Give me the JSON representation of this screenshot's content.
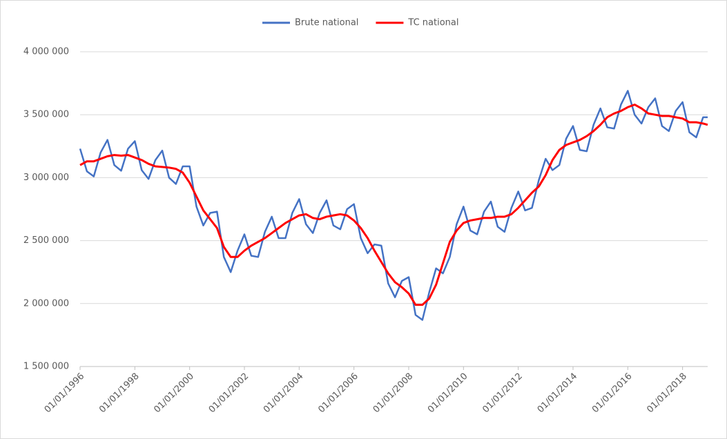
{
  "chart_data": {
    "type": "line",
    "x": [
      "01/01/1996",
      "01/04/1996",
      "01/07/1996",
      "01/10/1996",
      "01/01/1997",
      "01/04/1997",
      "01/07/1997",
      "01/10/1997",
      "01/01/1998",
      "01/04/1998",
      "01/07/1998",
      "01/10/1998",
      "01/01/1999",
      "01/04/1999",
      "01/07/1999",
      "01/10/1999",
      "01/01/2000",
      "01/04/2000",
      "01/07/2000",
      "01/10/2000",
      "01/01/2001",
      "01/04/2001",
      "01/07/2001",
      "01/10/2001",
      "01/01/2002",
      "01/04/2002",
      "01/07/2002",
      "01/10/2002",
      "01/01/2003",
      "01/04/2003",
      "01/07/2003",
      "01/10/2003",
      "01/01/2004",
      "01/04/2004",
      "01/07/2004",
      "01/10/2004",
      "01/01/2005",
      "01/04/2005",
      "01/07/2005",
      "01/10/2005",
      "01/01/2006",
      "01/04/2006",
      "01/07/2006",
      "01/10/2006",
      "01/01/2007",
      "01/04/2007",
      "01/07/2007",
      "01/10/2007",
      "01/01/2008",
      "01/04/2008",
      "01/07/2008",
      "01/10/2008",
      "01/01/2009",
      "01/04/2009",
      "01/07/2009",
      "01/10/2009",
      "01/01/2010",
      "01/04/2010",
      "01/07/2010",
      "01/10/2010",
      "01/01/2011",
      "01/04/2011",
      "01/07/2011",
      "01/10/2011",
      "01/01/2012",
      "01/04/2012",
      "01/07/2012",
      "01/10/2012",
      "01/01/2013",
      "01/04/2013",
      "01/07/2013",
      "01/10/2013",
      "01/01/2014",
      "01/04/2014",
      "01/07/2014",
      "01/10/2014",
      "01/01/2015",
      "01/04/2015",
      "01/07/2015",
      "01/10/2015",
      "01/01/2016",
      "01/04/2016",
      "01/07/2016",
      "01/10/2016",
      "01/01/2017",
      "01/04/2017",
      "01/07/2017",
      "01/10/2017",
      "01/01/2018",
      "01/04/2018",
      "01/07/2018",
      "01/10/2018",
      "01/12/2018"
    ],
    "series": [
      {
        "name": "Brute national",
        "color": "#4472c4",
        "values": [
          3230000,
          3050000,
          3010000,
          3200000,
          3300000,
          3100000,
          3055000,
          3230000,
          3290000,
          3060000,
          2990000,
          3140000,
          3215000,
          3000000,
          2950000,
          3090000,
          3090000,
          2770000,
          2620000,
          2720000,
          2730000,
          2370000,
          2250000,
          2420000,
          2550000,
          2380000,
          2370000,
          2570000,
          2690000,
          2520000,
          2520000,
          2720000,
          2830000,
          2630000,
          2560000,
          2720000,
          2820000,
          2620000,
          2590000,
          2750000,
          2790000,
          2520000,
          2400000,
          2470000,
          2460000,
          2160000,
          2050000,
          2180000,
          2210000,
          1910000,
          1870000,
          2090000,
          2280000,
          2240000,
          2370000,
          2630000,
          2770000,
          2580000,
          2550000,
          2730000,
          2810000,
          2610000,
          2570000,
          2760000,
          2890000,
          2740000,
          2760000,
          2980000,
          3150000,
          3060000,
          3100000,
          3310000,
          3410000,
          3220000,
          3210000,
          3420000,
          3550000,
          3400000,
          3390000,
          3580000,
          3690000,
          3500000,
          3430000,
          3560000,
          3630000,
          3410000,
          3370000,
          3530000,
          3600000,
          3360000,
          3320000,
          3480000,
          3480000
        ]
      },
      {
        "name": "TC national",
        "color": "#ff0000",
        "values": [
          3100000,
          3130000,
          3130000,
          3150000,
          3170000,
          3180000,
          3175000,
          3180000,
          3160000,
          3140000,
          3110000,
          3090000,
          3085000,
          3080000,
          3070000,
          3040000,
          2960000,
          2850000,
          2740000,
          2670000,
          2600000,
          2450000,
          2370000,
          2370000,
          2420000,
          2460000,
          2490000,
          2520000,
          2560000,
          2600000,
          2640000,
          2670000,
          2700000,
          2710000,
          2680000,
          2670000,
          2690000,
          2700000,
          2710000,
          2700000,
          2660000,
          2600000,
          2520000,
          2420000,
          2330000,
          2240000,
          2170000,
          2130000,
          2080000,
          1990000,
          1990000,
          2040000,
          2150000,
          2320000,
          2490000,
          2580000,
          2640000,
          2660000,
          2670000,
          2680000,
          2680000,
          2690000,
          2690000,
          2710000,
          2760000,
          2820000,
          2880000,
          2930000,
          3020000,
          3140000,
          3220000,
          3260000,
          3280000,
          3300000,
          3330000,
          3370000,
          3420000,
          3480000,
          3510000,
          3530000,
          3560000,
          3580000,
          3550000,
          3510000,
          3500000,
          3490000,
          3490000,
          3480000,
          3470000,
          3440000,
          3440000,
          3430000,
          3420000
        ]
      }
    ],
    "xlim": [
      "01/01/1996",
      "01/12/2018"
    ],
    "xticks": [
      "01/01/1996",
      "01/01/1998",
      "01/01/2000",
      "01/01/2002",
      "01/01/2004",
      "01/01/2006",
      "01/01/2008",
      "01/01/2010",
      "01/01/2012",
      "01/01/2014",
      "01/01/2016",
      "01/01/2018"
    ],
    "ylim": [
      1500000,
      4000000
    ],
    "yticks": [
      {
        "value": 1500000,
        "label": "1 500 000"
      },
      {
        "value": 2000000,
        "label": "2 000 000"
      },
      {
        "value": 2500000,
        "label": "2 500 000"
      },
      {
        "value": 3000000,
        "label": "3 000 000"
      },
      {
        "value": 3500000,
        "label": "3 500 000"
      },
      {
        "value": 4000000,
        "label": "4 000 000"
      }
    ],
    "grid": true,
    "legend": "top"
  }
}
